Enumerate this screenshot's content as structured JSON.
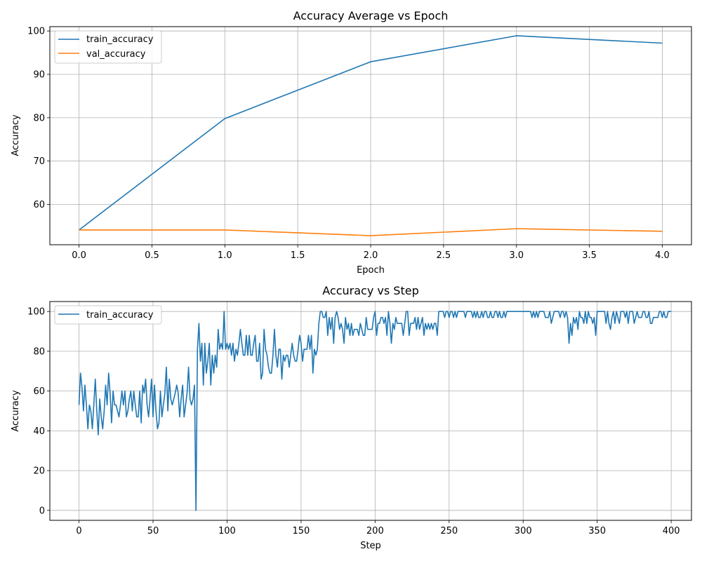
{
  "chart_data": [
    {
      "type": "line",
      "title": "Accuracy Average vs Epoch",
      "xlabel": "Epoch",
      "ylabel": "Accuracy",
      "grid": true,
      "legend_position": "top-left",
      "xlim": [
        -0.2,
        4.2
      ],
      "ylim": [
        50.7,
        101.0
      ],
      "xticks": [
        0.0,
        0.5,
        1.0,
        1.5,
        2.0,
        2.5,
        3.0,
        3.5,
        4.0
      ],
      "xtick_labels": [
        "0.0",
        "0.5",
        "1.0",
        "1.5",
        "2.0",
        "2.5",
        "3.0",
        "3.5",
        "4.0"
      ],
      "yticks": [
        60,
        70,
        80,
        90,
        100
      ],
      "ytick_labels": [
        "60",
        "70",
        "80",
        "90",
        "100"
      ],
      "x": [
        0,
        1,
        2,
        3,
        4
      ],
      "series": [
        {
          "name": "train_accuracy",
          "color": "#1f77b4",
          "values": [
            54.1,
            79.8,
            92.9,
            98.9,
            97.2
          ]
        },
        {
          "name": "val_accuracy",
          "color": "#ff7f0e",
          "values": [
            54.1,
            54.1,
            52.8,
            54.4,
            53.8
          ]
        }
      ]
    },
    {
      "type": "line",
      "title": "Accuracy vs Step",
      "xlabel": "Step",
      "ylabel": "Accuracy",
      "grid": true,
      "legend_position": "top-left",
      "xlim": [
        -19.7,
        413.7
      ],
      "ylim": [
        -5,
        105
      ],
      "xticks": [
        0,
        50,
        100,
        150,
        200,
        250,
        300,
        350,
        400
      ],
      "xtick_labels": [
        "0",
        "50",
        "100",
        "150",
        "200",
        "250",
        "300",
        "350",
        "400"
      ],
      "yticks": [
        0,
        20,
        40,
        60,
        80,
        100
      ],
      "ytick_labels": [
        "0",
        "20",
        "40",
        "60",
        "80",
        "100"
      ],
      "x_start": 0,
      "x_step": 1,
      "series": [
        {
          "name": "train_accuracy",
          "color": "#1f77b4",
          "values": [
            53,
            69,
            62,
            50,
            63,
            53,
            41,
            53,
            50,
            41,
            53,
            66,
            50,
            38,
            56,
            47,
            41,
            50,
            63,
            53,
            69,
            59,
            44,
            60,
            53,
            53,
            50,
            47,
            53,
            60,
            53,
            60,
            47,
            50,
            56,
            60,
            50,
            60,
            53,
            47,
            47,
            60,
            44,
            63,
            59,
            66,
            53,
            47,
            56,
            66,
            47,
            63,
            50,
            41,
            44,
            60,
            47,
            53,
            59,
            72,
            50,
            66,
            56,
            53,
            56,
            59,
            63,
            59,
            47,
            56,
            63,
            47,
            53,
            59,
            72,
            56,
            53,
            56,
            63,
            0,
            81,
            94,
            75,
            84,
            63,
            84,
            69,
            75,
            84,
            63,
            78,
            69,
            78,
            72,
            91,
            81,
            84,
            81,
            100,
            81,
            84,
            81,
            84,
            78,
            84,
            75,
            81,
            78,
            84,
            91,
            84,
            78,
            78,
            88,
            78,
            88,
            78,
            78,
            84,
            88,
            75,
            75,
            84,
            66,
            69,
            91,
            81,
            78,
            72,
            69,
            69,
            78,
            91,
            78,
            72,
            81,
            81,
            66,
            78,
            75,
            78,
            78,
            72,
            78,
            84,
            78,
            75,
            75,
            81,
            88,
            84,
            75,
            81,
            81,
            81,
            88,
            81,
            88,
            69,
            81,
            78,
            81,
            94,
            100,
            100,
            97,
            97,
            100,
            88,
            97,
            91,
            97,
            84,
            97,
            100,
            97,
            91,
            94,
            91,
            84,
            97,
            91,
            94,
            88,
            94,
            88,
            91,
            91,
            91,
            88,
            94,
            91,
            88,
            88,
            97,
            91,
            91,
            91,
            91,
            97,
            100,
            88,
            94,
            94,
            97,
            97,
            94,
            97,
            88,
            100,
            94,
            84,
            94,
            91,
            97,
            94,
            94,
            94,
            94,
            88,
            94,
            100,
            100,
            88,
            94,
            94,
            94,
            97,
            91,
            97,
            91,
            94,
            97,
            88,
            94,
            91,
            94,
            91,
            94,
            91,
            94,
            94,
            88,
            100,
            100,
            100,
            100,
            97,
            100,
            100,
            97,
            100,
            100,
            97,
            100,
            97,
            100,
            100,
            100,
            100,
            100,
            97,
            100,
            100,
            100,
            100,
            97,
            100,
            97,
            100,
            97,
            97,
            100,
            97,
            100,
            100,
            97,
            97,
            100,
            97,
            97,
            100,
            100,
            97,
            100,
            97,
            97,
            100,
            97,
            100,
            100,
            100,
            100,
            100,
            100,
            100,
            100,
            100,
            100,
            100,
            100,
            100,
            100,
            100,
            100,
            100,
            97,
            100,
            97,
            100,
            97,
            100,
            100,
            100,
            100,
            97,
            97,
            97,
            100,
            94,
            97,
            100,
            100,
            100,
            100,
            97,
            100,
            100,
            97,
            100,
            97,
            84,
            94,
            88,
            97,
            94,
            97,
            91,
            100,
            97,
            97,
            94,
            100,
            94,
            100,
            97,
            97,
            94,
            97,
            88,
            100,
            100,
            100,
            100,
            100,
            100,
            94,
            100,
            94,
            91,
            97,
            100,
            94,
            100,
            97,
            94,
            100,
            100,
            100,
            97,
            100,
            94,
            100,
            100,
            100,
            94,
            97,
            100,
            97,
            97,
            97,
            100,
            100,
            97,
            97,
            100,
            94,
            94,
            97,
            97,
            97,
            97,
            100,
            100,
            97,
            100,
            97,
            97,
            100,
            100,
            100
          ]
        }
      ]
    }
  ]
}
